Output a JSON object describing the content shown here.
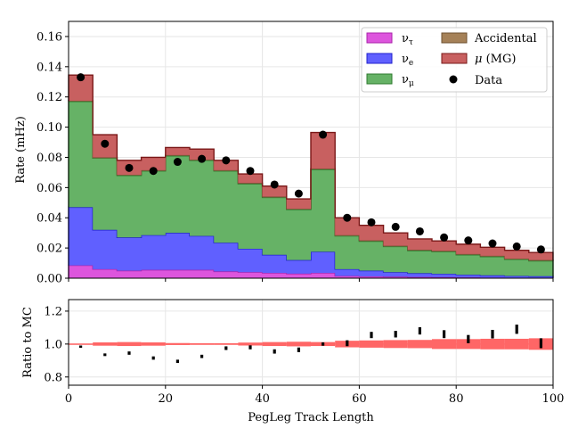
{
  "chart_data": [
    {
      "type": "stacked-step-histogram",
      "title": "",
      "xlabel": "",
      "ylabel": "Rate (mHz)",
      "xlim": [
        0,
        100
      ],
      "ylim": [
        0,
        0.17
      ],
      "yticks": [
        "0.00",
        "0.02",
        "0.04",
        "0.06",
        "0.08",
        "0.10",
        "0.12",
        "0.14",
        "0.16"
      ],
      "ytick_values": [
        0,
        0.02,
        0.04,
        0.06,
        0.08,
        0.1,
        0.12,
        0.14,
        0.16
      ],
      "grid": true,
      "legend_position": "top-right",
      "bin_edges": [
        0,
        5,
        10,
        15,
        20,
        25,
        30,
        35,
        40,
        45,
        50,
        55,
        60,
        65,
        70,
        75,
        80,
        85,
        90,
        95,
        100
      ],
      "series": [
        {
          "name": "ν_τ",
          "color": "#dd55dd",
          "edge": "#aa22aa",
          "values": [
            0.0085,
            0.006,
            0.005,
            0.0055,
            0.0055,
            0.0055,
            0.0045,
            0.004,
            0.0035,
            0.003,
            0.0035,
            0.0015,
            0.0012,
            0.001,
            0.0008,
            0.0007,
            0.0005,
            0.0004,
            0.0003,
            0.0003
          ]
        },
        {
          "name": "ν_e",
          "color": "#6060ff",
          "edge": "#2020cc",
          "values": [
            0.0385,
            0.026,
            0.022,
            0.023,
            0.0245,
            0.0225,
            0.019,
            0.0155,
            0.012,
            0.009,
            0.014,
            0.0045,
            0.0038,
            0.003,
            0.0025,
            0.0022,
            0.0018,
            0.0015,
            0.0012,
            0.001
          ]
        },
        {
          "name": "ν_μ",
          "color": "#66b266",
          "edge": "#2d7a2d",
          "values": [
            0.07,
            0.0475,
            0.041,
            0.0425,
            0.051,
            0.05,
            0.0475,
            0.043,
            0.038,
            0.0335,
            0.0545,
            0.022,
            0.0195,
            0.017,
            0.015,
            0.0147,
            0.0132,
            0.0124,
            0.011,
            0.0102
          ]
        },
        {
          "name": "Accidental",
          "color": "#a58158",
          "edge": "#6e5130",
          "values": [
            0.0005,
            0.0005,
            0.0005,
            0.0005,
            0.0005,
            0.0005,
            0.0005,
            0.0005,
            0.0005,
            0.0005,
            0.0005,
            0.0005,
            0.0005,
            0.0005,
            0.0005,
            0.0005,
            0.0005,
            0.0005,
            0.0005,
            0.0005
          ]
        },
        {
          "name": "μ (MG)",
          "color": "#c86060",
          "edge": "#7a1818",
          "values": [
            0.017,
            0.015,
            0.0095,
            0.0085,
            0.005,
            0.007,
            0.0065,
            0.006,
            0.007,
            0.0065,
            0.024,
            0.0115,
            0.01,
            0.0085,
            0.0072,
            0.0066,
            0.0065,
            0.0057,
            0.0055,
            0.005
          ]
        }
      ],
      "data_series": {
        "name": "Data",
        "x": [
          2.5,
          7.5,
          12.5,
          17.5,
          22.5,
          27.5,
          32.5,
          37.5,
          42.5,
          47.5,
          52.5,
          57.5,
          62.5,
          67.5,
          72.5,
          77.5,
          82.5,
          87.5,
          92.5,
          97.5
        ],
        "y": [
          0.133,
          0.089,
          0.073,
          0.071,
          0.077,
          0.079,
          0.078,
          0.071,
          0.062,
          0.056,
          0.095,
          0.04,
          0.037,
          0.034,
          0.031,
          0.027,
          0.025,
          0.023,
          0.021,
          0.019
        ]
      }
    },
    {
      "type": "ratio",
      "title": "",
      "xlabel": "PegLeg Track Length",
      "ylabel": "Ratio to MC",
      "xlim": [
        0,
        100
      ],
      "ylim": [
        0.75,
        1.27
      ],
      "xticks": [
        "0",
        "20",
        "40",
        "60",
        "80",
        "100"
      ],
      "xtick_values": [
        0,
        20,
        40,
        60,
        80,
        100
      ],
      "yticks": [
        "0.8",
        "1.0",
        "1.2"
      ],
      "ytick_values": [
        0.8,
        1.0,
        1.2
      ],
      "grid": true,
      "band_color": "#ff6666",
      "mc_uncertainty_half_width": [
        0.003,
        0.01,
        0.012,
        0.01,
        0.006,
        0.005,
        0.005,
        0.009,
        0.012,
        0.014,
        0.012,
        0.02,
        0.022,
        0.024,
        0.025,
        0.03,
        0.03,
        0.032,
        0.032,
        0.035
      ],
      "ratio_x": [
        2.5,
        7.5,
        12.5,
        17.5,
        22.5,
        27.5,
        32.5,
        37.5,
        42.5,
        47.5,
        52.5,
        57.5,
        62.5,
        67.5,
        72.5,
        77.5,
        82.5,
        87.5,
        92.5,
        97.5
      ],
      "ratio_y": [
        0.985,
        0.935,
        0.945,
        0.915,
        0.895,
        0.925,
        0.975,
        0.98,
        0.955,
        0.965,
        1.0,
        1.005,
        1.055,
        1.06,
        1.08,
        1.06,
        1.03,
        1.06,
        1.09,
        1.005
      ],
      "ratio_err": [
        0.006,
        0.008,
        0.01,
        0.01,
        0.01,
        0.01,
        0.011,
        0.012,
        0.013,
        0.014,
        0.01,
        0.018,
        0.019,
        0.02,
        0.022,
        0.024,
        0.025,
        0.026,
        0.028,
        0.03
      ]
    }
  ]
}
